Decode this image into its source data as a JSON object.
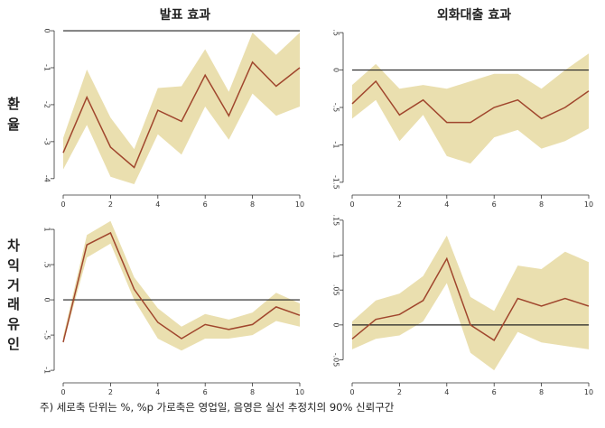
{
  "column_titles": [
    "발표 효과",
    "외화대출 효과"
  ],
  "row_labels": [
    [
      "환",
      "율"
    ],
    [
      "차",
      "익",
      "거",
      "래",
      "유",
      "인"
    ]
  ],
  "footnote": "주) 세로축 단위는 %, %p 가로축은 영업일, 음영은 실선 추정치의 90% 신뢰구간",
  "colors": {
    "band": "#eadfaf",
    "line": "#a0462d",
    "zero": "#222222",
    "tick": "#333333"
  },
  "chart_data": [
    {
      "type": "line",
      "x": [
        0,
        1,
        2,
        3,
        4,
        5,
        6,
        7,
        8,
        9,
        10
      ],
      "series": [
        {
          "values": [
            -3.3,
            -1.8,
            -3.15,
            -3.7,
            -2.15,
            -2.45,
            -1.2,
            -2.3,
            -0.85,
            -1.5,
            -1.0
          ]
        }
      ],
      "band_upper": [
        -2.9,
        -1.05,
        -2.35,
        -3.2,
        -1.55,
        -1.5,
        -0.5,
        -1.65,
        -0.05,
        -0.65,
        -0.05
      ],
      "band_lower": [
        -3.75,
        -2.55,
        -3.95,
        -4.15,
        -2.8,
        -3.35,
        -2.05,
        -2.95,
        -1.7,
        -2.3,
        -2.05
      ],
      "xticks": [
        "0",
        "2",
        "4",
        "6",
        "8",
        "10"
      ],
      "yticks": [
        "0",
        "-1",
        "-2",
        "-3",
        "-4"
      ],
      "ytick_values": [
        0,
        -1,
        -2,
        -3,
        -4
      ],
      "xlim": [
        0,
        10
      ],
      "ylim": [
        -4.2,
        0.05
      ],
      "zero_line": 0
    },
    {
      "type": "line",
      "x": [
        0,
        1,
        2,
        3,
        4,
        5,
        6,
        7,
        8,
        9,
        10
      ],
      "series": [
        {
          "values": [
            -0.45,
            -0.15,
            -0.6,
            -0.4,
            -0.7,
            -0.7,
            -0.5,
            -0.4,
            -0.65,
            -0.5,
            -0.28
          ]
        }
      ],
      "band_upper": [
        -0.2,
        0.08,
        -0.25,
        -0.2,
        -0.25,
        -0.15,
        -0.05,
        -0.05,
        -0.25,
        0.0,
        0.22
      ],
      "band_lower": [
        -0.65,
        -0.4,
        -0.95,
        -0.6,
        -1.15,
        -1.25,
        -0.9,
        -0.8,
        -1.05,
        -0.95,
        -0.78
      ],
      "xticks": [
        "0",
        "2",
        "4",
        "6",
        "8",
        "10"
      ],
      "yticks": [
        ".5",
        "0",
        "-.5",
        "-1",
        "-1.5"
      ],
      "ytick_values": [
        0.5,
        0,
        -0.5,
        -1,
        -1.5
      ],
      "xlim": [
        0,
        10
      ],
      "ylim": [
        -1.55,
        0.55
      ],
      "zero_line": 0
    },
    {
      "type": "line",
      "x": [
        0,
        1,
        2,
        3,
        4,
        5,
        6,
        7,
        8,
        9,
        10
      ],
      "series": [
        {
          "values": [
            -0.6,
            0.78,
            0.95,
            0.15,
            -0.32,
            -0.55,
            -0.35,
            -0.42,
            -0.35,
            -0.1,
            -0.22
          ]
        }
      ],
      "band_upper": [
        -0.52,
        0.92,
        1.12,
        0.32,
        -0.12,
        -0.38,
        -0.2,
        -0.28,
        -0.18,
        0.1,
        -0.05
      ],
      "band_lower": [
        -0.62,
        0.6,
        0.8,
        0.0,
        -0.55,
        -0.72,
        -0.55,
        -0.55,
        -0.5,
        -0.3,
        -0.38
      ],
      "xticks": [
        "0",
        "2",
        "4",
        "6",
        "8",
        "10"
      ],
      "yticks": [
        "1",
        ".5",
        "0",
        "-.5",
        "-1"
      ],
      "ytick_values": [
        1,
        0.5,
        0,
        -0.5,
        -1
      ],
      "xlim": [
        0,
        10
      ],
      "ylim": [
        -1.05,
        1.18
      ],
      "zero_line": 0
    },
    {
      "type": "line",
      "x": [
        0,
        1,
        2,
        3,
        4,
        5,
        6,
        7,
        8,
        9,
        10
      ],
      "series": [
        {
          "values": [
            -0.02,
            0.008,
            0.015,
            0.035,
            0.095,
            0.0,
            -0.022,
            0.038,
            0.027,
            0.038,
            0.027
          ]
        }
      ],
      "band_upper": [
        0.005,
        0.035,
        0.045,
        0.07,
        0.128,
        0.04,
        0.02,
        0.085,
        0.08,
        0.105,
        0.09
      ],
      "band_lower": [
        -0.035,
        -0.02,
        -0.015,
        0.005,
        0.06,
        -0.04,
        -0.065,
        -0.01,
        -0.025,
        -0.03,
        -0.035
      ],
      "xticks": [
        "0",
        "2",
        "4",
        "6",
        "8",
        "10"
      ],
      "yticks": [
        ".15",
        ".1",
        ".05",
        "0",
        "-.05"
      ],
      "ytick_values": [
        0.15,
        0.1,
        0.05,
        0,
        -0.05
      ],
      "xlim": [
        0,
        10
      ],
      "ylim": [
        -0.07,
        0.155
      ],
      "zero_line": 0
    }
  ]
}
